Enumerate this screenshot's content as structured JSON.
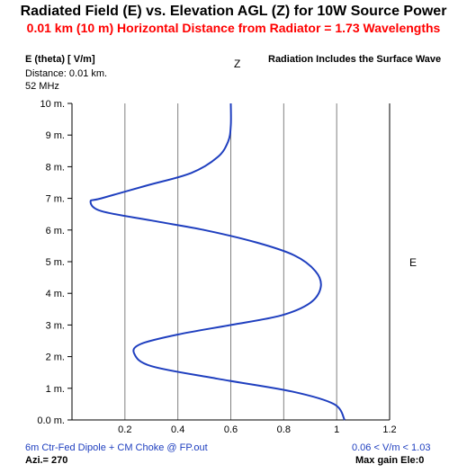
{
  "header": {
    "title": "Radiated Field (E) vs. Elevation AGL (Z) for 10W Source Power",
    "subtitle": "0.01 km (10 m) Horizontal Distance from Radiator = 1.73 Wavelengths"
  },
  "info": {
    "yunit": "E (theta) [ V/m]",
    "distance": "Distance: 0.01 km.",
    "freq": "52 MHz",
    "z_label": "Z",
    "note": "Radiation Includes the Surface Wave",
    "e_label": "E"
  },
  "footer": {
    "file": "6m Ctr-Fed Dipole + CM Choke @ FP.out",
    "azi": "Azi.= 270",
    "range": "0.06 <  V/m < 1.03",
    "maxgain": "Max gain Ele:0"
  },
  "colors": {
    "curve": "#1f3fbf",
    "grid": "#808080",
    "subtitle": "#ff0000"
  },
  "chart_data": {
    "type": "line",
    "xlim": [
      0,
      1.2
    ],
    "ylim": [
      0,
      10
    ],
    "x_ticks": [
      "0.2",
      "0.4",
      "0.6",
      "0.8",
      "1",
      "1.2"
    ],
    "x_tick_values": [
      0.2,
      0.4,
      0.6,
      0.8,
      1.0,
      1.2
    ],
    "y_ticks": [
      "0.0 m.",
      "1 m.",
      "2 m.",
      "3 m.",
      "4 m.",
      "5 m.",
      "6 m.",
      "7 m.",
      "8 m.",
      "9 m.",
      "10 m."
    ],
    "y_tick_values": [
      0,
      1,
      2,
      3,
      4,
      5,
      6,
      7,
      8,
      9,
      10
    ],
    "grid": "vertical",
    "series": [
      {
        "x": [
          1.03,
          0.99,
          0.83,
          0.55,
          0.3,
          0.235,
          0.26,
          0.4,
          0.6,
          0.79,
          0.9,
          0.94,
          0.92,
          0.84,
          0.7,
          0.5,
          0.3,
          0.11,
          0.07,
          0.11,
          0.28,
          0.45,
          0.55,
          0.59,
          0.6,
          0.6
        ],
        "y": [
          0,
          0.5,
          0.9,
          1.3,
          1.7,
          2.1,
          2.4,
          2.7,
          3.0,
          3.3,
          3.7,
          4.2,
          4.7,
          5.2,
          5.6,
          6.0,
          6.3,
          6.6,
          6.9,
          7.0,
          7.4,
          7.8,
          8.3,
          8.8,
          9.3,
          10
        ]
      }
    ]
  }
}
